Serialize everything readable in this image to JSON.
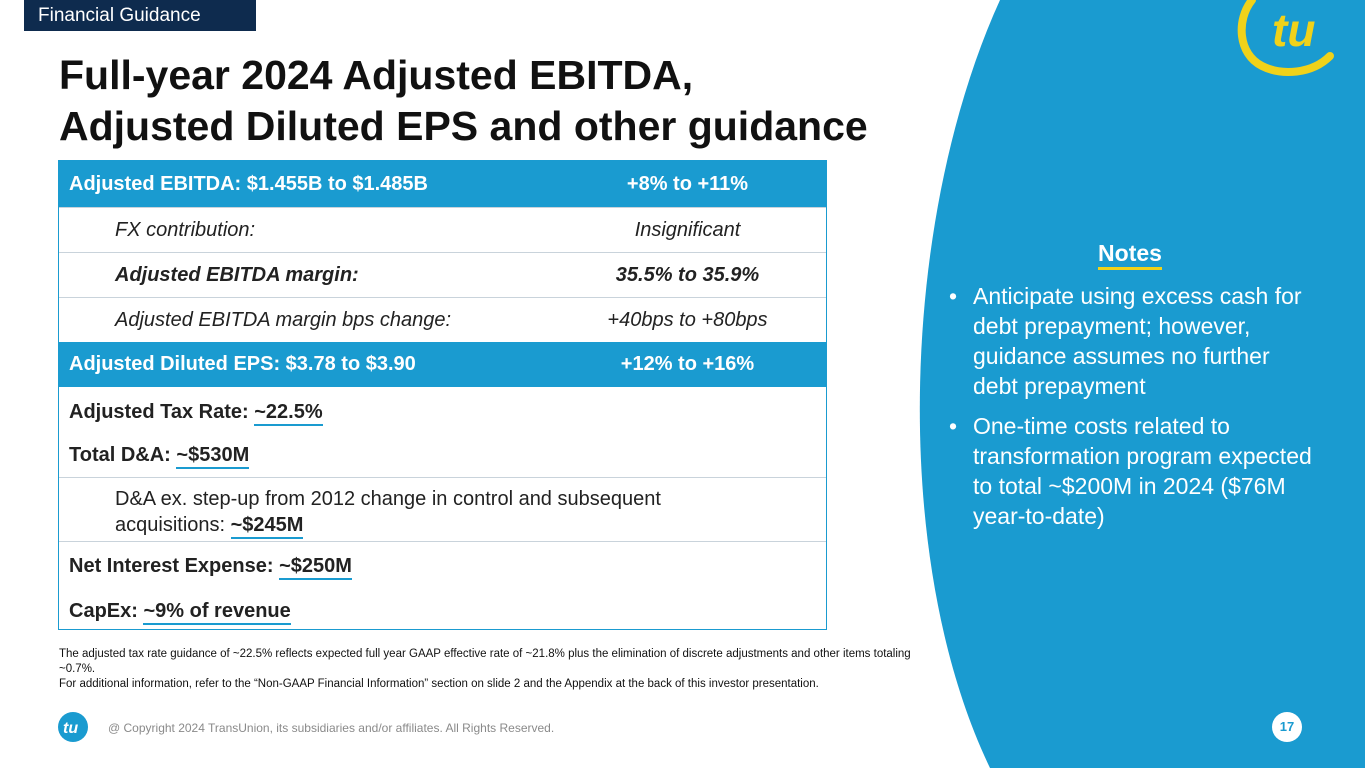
{
  "header": {
    "section_tag": "Financial Guidance",
    "title_line1": "Full-year 2024 Adjusted EBITDA,",
    "title_line2": "Adjusted Diluted EPS and other guidance"
  },
  "table": {
    "ebitda": {
      "label": "Adjusted EBITDA: $1.455B to $1.485B",
      "value": "+8% to +11%"
    },
    "fx": {
      "label": "FX contribution:",
      "value": "Insignificant"
    },
    "margin": {
      "label": "Adjusted EBITDA margin:",
      "value": "35.5% to 35.9%"
    },
    "margin_bps": {
      "label": "Adjusted EBITDA margin bps change:",
      "value": "+40bps to +80bps"
    },
    "eps": {
      "label": "Adjusted Diluted EPS: $3.78 to $3.90",
      "value": "+12% to +16%"
    },
    "tax_rate": {
      "label": "Adjusted Tax Rate: ",
      "value": "~22.5%"
    },
    "dna": {
      "label": "Total D&A: ",
      "value": "~$530M"
    },
    "dna_ex": {
      "label": "D&A ex. step-up from 2012 change in control and subsequent acquisitions: ",
      "value": "~$245M"
    },
    "interest": {
      "label": "Net Interest Expense: ",
      "value": "~$250M"
    },
    "capex": {
      "label": "CapEx: ",
      "value": "~9% of revenue"
    }
  },
  "notes": {
    "title": "Notes",
    "items": [
      "Anticipate using excess cash for debt prepayment; however, guidance assumes no further debt prepayment",
      "One-time costs related to transformation program expected to total ~$200M in 2024 ($76M year-to-date)"
    ]
  },
  "footnotes": {
    "line1": "The adjusted tax rate guidance of ~22.5% reflects expected full year GAAP effective rate of ~21.8% plus the elimination of discrete adjustments and other items totaling ~0.7%.",
    "line2": "For additional information, refer to the “Non-GAAP Financial Information” section on slide 2 and the Appendix at the back of this investor presentation."
  },
  "footer": {
    "copyright": "@ Copyright 2024 TransUnion, its subsidiaries and/or affiliates.  All Rights Reserved.",
    "page_number": "17"
  },
  "brand": {
    "logo": "tu-logo-icon",
    "accent_blue": "#1a9bd0",
    "accent_yellow": "#f0d21a",
    "navy": "#0e2b4e"
  }
}
